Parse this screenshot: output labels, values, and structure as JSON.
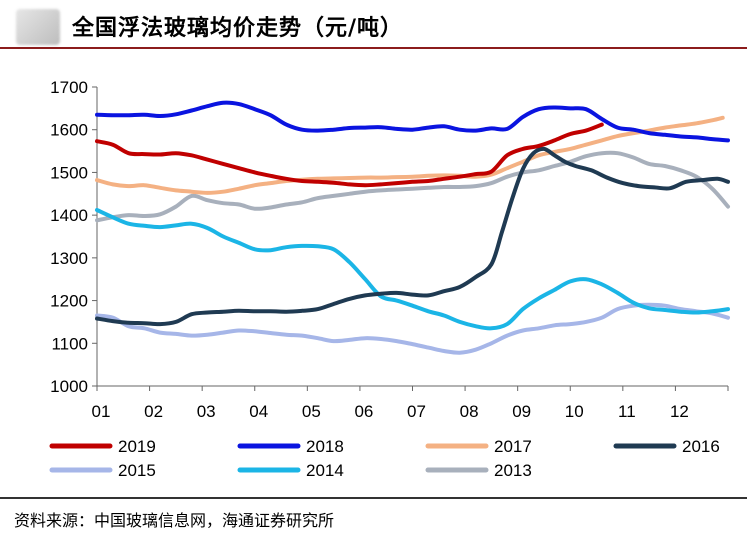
{
  "header": {
    "title": "全国浮法玻璃均价走势（元/吨）"
  },
  "footer": {
    "source": "资料来源：中国玻璃信息网，海通证券研究所"
  },
  "chart_data": {
    "type": "line",
    "title": "全国浮法玻璃均价走势（元/吨）",
    "xlabel": "",
    "ylabel": "",
    "ylim": [
      1000,
      1700
    ],
    "yticks": [
      "1000",
      "1100",
      "1200",
      "1300",
      "1400",
      "1500",
      "1600",
      "1700"
    ],
    "categories": [
      "01",
      "02",
      "03",
      "04",
      "05",
      "06",
      "07",
      "08",
      "09",
      "10",
      "11",
      "12"
    ],
    "x_range": [
      1,
      13
    ],
    "legend_position": "bottom",
    "series": [
      {
        "name": "2019",
        "color": "#c00000",
        "x": [
          1,
          1.3,
          1.6,
          1.9,
          2.2,
          2.5,
          2.8,
          3.1,
          3.4,
          3.7,
          4.0,
          4.3,
          4.6,
          4.9,
          5.2,
          5.5,
          5.8,
          6.1,
          6.4,
          6.7,
          7.0,
          7.3,
          7.6,
          7.9,
          8.2,
          8.5,
          8.8,
          9.1,
          9.4,
          9.7,
          10.0,
          10.3,
          10.6
        ],
        "values": [
          1573,
          1565,
          1545,
          1543,
          1542,
          1545,
          1540,
          1530,
          1520,
          1510,
          1500,
          1492,
          1485,
          1480,
          1478,
          1476,
          1472,
          1470,
          1472,
          1475,
          1478,
          1480,
          1485,
          1490,
          1496,
          1502,
          1540,
          1555,
          1562,
          1575,
          1590,
          1598,
          1612
        ]
      },
      {
        "name": "2018",
        "color": "#0a14e0",
        "x": [
          1,
          1.3,
          1.6,
          1.9,
          2.2,
          2.5,
          2.8,
          3.1,
          3.4,
          3.7,
          4.0,
          4.3,
          4.6,
          4.9,
          5.2,
          5.5,
          5.8,
          6.1,
          6.4,
          6.7,
          7.0,
          7.3,
          7.6,
          7.9,
          8.2,
          8.5,
          8.8,
          9.1,
          9.4,
          9.7,
          10.0,
          10.3,
          10.6,
          10.9,
          11.2,
          11.5,
          11.8,
          12.1,
          12.4,
          12.7,
          13.0
        ],
        "values": [
          1635,
          1634,
          1634,
          1635,
          1632,
          1636,
          1645,
          1655,
          1663,
          1660,
          1648,
          1634,
          1612,
          1600,
          1598,
          1600,
          1604,
          1605,
          1606,
          1602,
          1600,
          1605,
          1608,
          1600,
          1598,
          1603,
          1602,
          1630,
          1648,
          1652,
          1650,
          1648,
          1625,
          1605,
          1600,
          1592,
          1588,
          1584,
          1582,
          1578,
          1575
        ]
      },
      {
        "name": "2017",
        "color": "#f4b183",
        "x": [
          1,
          1.3,
          1.6,
          1.9,
          2.2,
          2.5,
          2.8,
          3.1,
          3.4,
          3.7,
          4.0,
          4.3,
          4.6,
          4.9,
          5.2,
          5.5,
          5.8,
          6.1,
          6.4,
          6.7,
          7.0,
          7.3,
          7.6,
          7.9,
          8.2,
          8.5,
          8.8,
          9.1,
          9.4,
          9.7,
          10.0,
          10.3,
          10.6,
          10.9,
          11.2,
          11.5,
          11.8,
          12.1,
          12.4,
          12.7,
          12.9
        ],
        "values": [
          1482,
          1472,
          1468,
          1470,
          1464,
          1458,
          1455,
          1452,
          1455,
          1462,
          1470,
          1475,
          1480,
          1483,
          1485,
          1486,
          1487,
          1488,
          1488,
          1489,
          1490,
          1492,
          1493,
          1492,
          1490,
          1495,
          1510,
          1525,
          1540,
          1548,
          1555,
          1565,
          1575,
          1585,
          1592,
          1598,
          1605,
          1610,
          1615,
          1622,
          1628
        ]
      },
      {
        "name": "2016",
        "color": "#1f3a52",
        "x": [
          1,
          1.3,
          1.6,
          1.9,
          2.2,
          2.5,
          2.8,
          3.1,
          3.4,
          3.7,
          4.0,
          4.3,
          4.6,
          4.9,
          5.2,
          5.5,
          5.8,
          6.1,
          6.4,
          6.7,
          7.0,
          7.3,
          7.6,
          7.9,
          8.2,
          8.5,
          8.7,
          8.9,
          9.1,
          9.3,
          9.5,
          9.7,
          9.9,
          10.1,
          10.4,
          10.7,
          11.0,
          11.3,
          11.6,
          11.9,
          12.2,
          12.5,
          12.8,
          13.0
        ],
        "values": [
          1158,
          1152,
          1148,
          1147,
          1145,
          1150,
          1168,
          1172,
          1174,
          1176,
          1175,
          1175,
          1174,
          1176,
          1180,
          1192,
          1204,
          1212,
          1216,
          1218,
          1214,
          1212,
          1222,
          1232,
          1255,
          1285,
          1360,
          1440,
          1508,
          1545,
          1555,
          1540,
          1525,
          1515,
          1505,
          1488,
          1475,
          1468,
          1465,
          1463,
          1478,
          1482,
          1485,
          1478
        ]
      },
      {
        "name": "2015",
        "color": "#a6b6e8",
        "x": [
          1,
          1.3,
          1.6,
          1.9,
          2.2,
          2.5,
          2.8,
          3.1,
          3.4,
          3.7,
          4.0,
          4.3,
          4.6,
          4.9,
          5.2,
          5.5,
          5.8,
          6.1,
          6.4,
          6.7,
          7.0,
          7.3,
          7.6,
          7.9,
          8.2,
          8.5,
          8.8,
          9.1,
          9.4,
          9.7,
          10.0,
          10.3,
          10.6,
          10.9,
          11.2,
          11.5,
          11.8,
          12.1,
          12.4,
          12.7,
          13.0
        ],
        "values": [
          1165,
          1160,
          1140,
          1135,
          1125,
          1122,
          1118,
          1120,
          1125,
          1130,
          1128,
          1124,
          1120,
          1118,
          1112,
          1105,
          1108,
          1112,
          1110,
          1105,
          1098,
          1090,
          1082,
          1078,
          1085,
          1100,
          1118,
          1130,
          1135,
          1142,
          1145,
          1150,
          1160,
          1180,
          1188,
          1190,
          1188,
          1180,
          1175,
          1170,
          1160
        ]
      },
      {
        "name": "2014",
        "color": "#1bb5e6",
        "x": [
          1,
          1.3,
          1.6,
          1.9,
          2.2,
          2.5,
          2.8,
          3.1,
          3.4,
          3.7,
          4.0,
          4.3,
          4.6,
          4.9,
          5.2,
          5.5,
          5.8,
          6.1,
          6.4,
          6.7,
          7.0,
          7.3,
          7.6,
          7.9,
          8.2,
          8.5,
          8.8,
          9.1,
          9.4,
          9.7,
          10.0,
          10.3,
          10.6,
          10.9,
          11.2,
          11.5,
          11.8,
          12.1,
          12.4,
          12.7,
          13.0
        ],
        "values": [
          1412,
          1395,
          1380,
          1375,
          1372,
          1376,
          1380,
          1370,
          1350,
          1335,
          1320,
          1318,
          1325,
          1328,
          1327,
          1320,
          1290,
          1250,
          1210,
          1200,
          1188,
          1175,
          1165,
          1150,
          1140,
          1135,
          1145,
          1180,
          1205,
          1225,
          1245,
          1250,
          1238,
          1218,
          1195,
          1182,
          1178,
          1174,
          1172,
          1175,
          1180
        ]
      },
      {
        "name": "2013",
        "color": "#a8b0bc",
        "x": [
          1,
          1.3,
          1.6,
          1.9,
          2.2,
          2.5,
          2.8,
          3.1,
          3.4,
          3.7,
          4.0,
          4.3,
          4.6,
          4.9,
          5.2,
          5.5,
          5.8,
          6.1,
          6.4,
          6.7,
          7.0,
          7.3,
          7.6,
          7.9,
          8.2,
          8.5,
          8.8,
          9.1,
          9.4,
          9.7,
          10.0,
          10.3,
          10.6,
          10.9,
          11.2,
          11.5,
          11.8,
          12.1,
          12.4,
          12.7,
          13.0
        ],
        "values": [
          1388,
          1395,
          1400,
          1398,
          1402,
          1420,
          1445,
          1435,
          1428,
          1425,
          1415,
          1418,
          1425,
          1430,
          1440,
          1445,
          1450,
          1455,
          1458,
          1460,
          1462,
          1464,
          1466,
          1466,
          1468,
          1475,
          1490,
          1500,
          1505,
          1515,
          1525,
          1538,
          1545,
          1545,
          1535,
          1520,
          1515,
          1505,
          1490,
          1462,
          1420
        ]
      }
    ],
    "legend": [
      "2019",
      "2018",
      "2017",
      "2016",
      "2015",
      "2014",
      "2013"
    ]
  }
}
